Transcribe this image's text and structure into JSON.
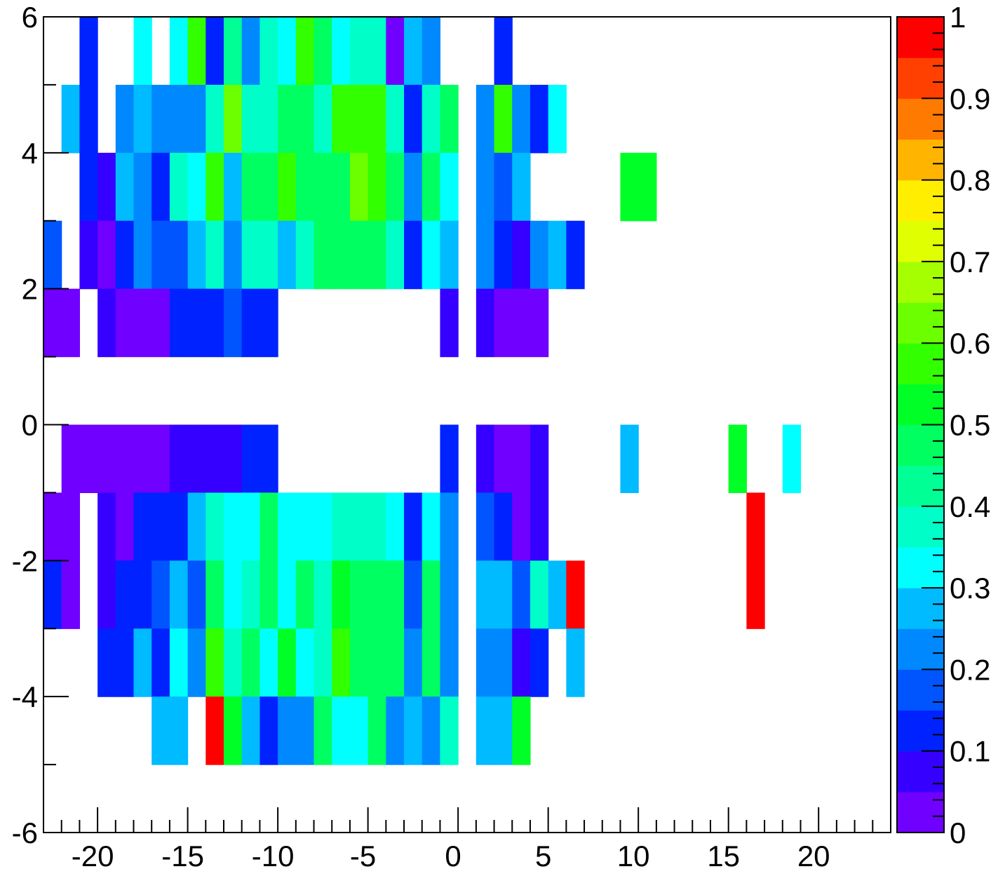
{
  "chart_data": {
    "type": "heatmap",
    "title": "",
    "xlabel": "",
    "ylabel": "",
    "xlim": [
      -23,
      24
    ],
    "ylim": [
      -6,
      6
    ],
    "x_bin_width": 1,
    "y_bin_width": 1,
    "x_tick_labels": [
      "-20",
      "-15",
      "-10",
      "-5",
      "0",
      "5",
      "10",
      "15",
      "20"
    ],
    "y_tick_labels": [
      "6",
      "4",
      "2",
      "0",
      "-2",
      "-4",
      "-6"
    ],
    "color_scale": {
      "min": 0,
      "max": 1,
      "tick_labels": [
        "1",
        "0.9",
        "0.8",
        "0.7",
        "0.6",
        "0.5",
        "0.4",
        "0.3",
        "0.2",
        "0.1",
        "0"
      ],
      "colors": [
        "#7000ff",
        "#3500ff",
        "#0022ff",
        "#0055ff",
        "#0088ff",
        "#00bbff",
        "#00ffff",
        "#00ffc8",
        "#00ff94",
        "#00ff60",
        "#00ff26",
        "#32ff00",
        "#6cff00",
        "#a6ff00",
        "#e0ff00",
        "#ffee00",
        "#ffb400",
        "#ff7a00",
        "#ff4000",
        "#ff0000"
      ]
    },
    "rows": [
      {
        "y_low": 5,
        "cells": [
          [
            -21,
            0.14
          ],
          [
            -18,
            0.31
          ],
          [
            -16,
            0.31
          ],
          [
            -15,
            0.55
          ],
          [
            -14,
            0.14
          ],
          [
            -13,
            0.42
          ],
          [
            -12,
            0.22
          ],
          [
            -11,
            0.38
          ],
          [
            -10,
            0.31
          ],
          [
            -9,
            0.55
          ],
          [
            -8,
            0.45
          ],
          [
            -7,
            0.31
          ],
          [
            -6,
            0.38
          ],
          [
            -5,
            0.38
          ],
          [
            -4,
            0.02
          ],
          [
            -3,
            0.25
          ],
          [
            -2,
            0.22
          ],
          [
            2,
            0.14
          ]
        ]
      },
      {
        "y_low": 4,
        "cells": [
          [
            -22,
            0.28
          ],
          [
            -21,
            0.14
          ],
          [
            -19,
            0.22
          ],
          [
            -18,
            0.28
          ],
          [
            -17,
            0.22
          ],
          [
            -16,
            0.22
          ],
          [
            -15,
            0.22
          ],
          [
            -14,
            0.38
          ],
          [
            -13,
            0.62
          ],
          [
            -12,
            0.38
          ],
          [
            -11,
            0.38
          ],
          [
            -10,
            0.45
          ],
          [
            -9,
            0.48
          ],
          [
            -8,
            0.38
          ],
          [
            -7,
            0.55
          ],
          [
            -6,
            0.55
          ],
          [
            -5,
            0.55
          ],
          [
            -4,
            0.38
          ],
          [
            -3,
            0.14
          ],
          [
            -2,
            0.38
          ],
          [
            -1,
            0.48
          ],
          [
            1,
            0.22
          ],
          [
            2,
            0.55
          ],
          [
            3,
            0.22
          ],
          [
            4,
            0.12
          ],
          [
            5,
            0.31
          ]
        ]
      },
      {
        "y_low": 3,
        "cells": [
          [
            -21,
            0.12
          ],
          [
            -20,
            0.06
          ],
          [
            -19,
            0.28
          ],
          [
            -18,
            0.22
          ],
          [
            -17,
            0.14
          ],
          [
            -16,
            0.38
          ],
          [
            -15,
            0.31
          ],
          [
            -14,
            0.55
          ],
          [
            -13,
            0.28
          ],
          [
            -12,
            0.48
          ],
          [
            -11,
            0.45
          ],
          [
            -10,
            0.55
          ],
          [
            -9,
            0.45
          ],
          [
            -8,
            0.45
          ],
          [
            -7,
            0.45
          ],
          [
            -6,
            0.62
          ],
          [
            -5,
            0.55
          ],
          [
            -4,
            0.48
          ],
          [
            -3,
            0.22
          ],
          [
            -2,
            0.45
          ],
          [
            -1,
            0.31
          ],
          [
            1,
            0.22
          ],
          [
            2,
            0.18
          ],
          [
            3,
            0.28
          ],
          [
            9,
            0.52
          ],
          [
            10,
            0.52
          ]
        ]
      },
      {
        "y_low": 2,
        "cells": [
          [
            -23,
            0.18
          ],
          [
            -21,
            0.06
          ],
          [
            -20,
            0.02
          ],
          [
            -19,
            0.14
          ],
          [
            -18,
            0.22
          ],
          [
            -17,
            0.18
          ],
          [
            -16,
            0.18
          ],
          [
            -15,
            0.28
          ],
          [
            -14,
            0.38
          ],
          [
            -13,
            0.22
          ],
          [
            -12,
            0.38
          ],
          [
            -11,
            0.38
          ],
          [
            -10,
            0.28
          ],
          [
            -9,
            0.38
          ],
          [
            -8,
            0.45
          ],
          [
            -7,
            0.45
          ],
          [
            -6,
            0.45
          ],
          [
            -5,
            0.45
          ],
          [
            -4,
            0.38
          ],
          [
            -3,
            0.14
          ],
          [
            -2,
            0.31
          ],
          [
            -1,
            0.28
          ],
          [
            1,
            0.22
          ],
          [
            2,
            0.14
          ],
          [
            3,
            0.06
          ],
          [
            4,
            0.22
          ],
          [
            5,
            0.28
          ],
          [
            6,
            0.12
          ]
        ]
      },
      {
        "y_low": 1,
        "cells": [
          [
            -23,
            0.02
          ],
          [
            -22,
            0.02
          ],
          [
            -20,
            0.06
          ],
          [
            -19,
            0.02
          ],
          [
            -18,
            0.02
          ],
          [
            -17,
            0.02
          ],
          [
            -16,
            0.12
          ],
          [
            -15,
            0.12
          ],
          [
            -14,
            0.12
          ],
          [
            -13,
            0.18
          ],
          [
            -12,
            0.12
          ],
          [
            -11,
            0.12
          ],
          [
            -1,
            0.06
          ],
          [
            1,
            0.06
          ],
          [
            2,
            0.02
          ],
          [
            3,
            0.02
          ],
          [
            4,
            0.02
          ]
        ]
      },
      {
        "y_low": -1,
        "cells": [
          [
            -22,
            0.02
          ],
          [
            -21,
            0.02
          ],
          [
            -20,
            0.02
          ],
          [
            -19,
            0.02
          ],
          [
            -18,
            0.02
          ],
          [
            -17,
            0.02
          ],
          [
            -16,
            0.06
          ],
          [
            -15,
            0.06
          ],
          [
            -14,
            0.06
          ],
          [
            -13,
            0.06
          ],
          [
            -12,
            0.12
          ],
          [
            -11,
            0.12
          ],
          [
            -1,
            0.12
          ],
          [
            1,
            0.06
          ],
          [
            2,
            0.02
          ],
          [
            3,
            0.02
          ],
          [
            4,
            0.06
          ],
          [
            9,
            0.28
          ],
          [
            15,
            0.52
          ],
          [
            18,
            0.31
          ]
        ]
      },
      {
        "y_low": -2,
        "cells": [
          [
            -23,
            0.02
          ],
          [
            -22,
            0.02
          ],
          [
            -20,
            0.06
          ],
          [
            -19,
            0.02
          ],
          [
            -18,
            0.12
          ],
          [
            -17,
            0.12
          ],
          [
            -16,
            0.12
          ],
          [
            -15,
            0.28
          ],
          [
            -14,
            0.38
          ],
          [
            -13,
            0.31
          ],
          [
            -12,
            0.31
          ],
          [
            -11,
            0.45
          ],
          [
            -10,
            0.31
          ],
          [
            -9,
            0.31
          ],
          [
            -8,
            0.31
          ],
          [
            -7,
            0.38
          ],
          [
            -6,
            0.38
          ],
          [
            -5,
            0.38
          ],
          [
            -4,
            0.31
          ],
          [
            -3,
            0.12
          ],
          [
            -2,
            0.31
          ],
          [
            -1,
            0.22
          ],
          [
            1,
            0.18
          ],
          [
            2,
            0.12
          ],
          [
            3,
            0.02
          ],
          [
            4,
            0.06
          ],
          [
            16,
            1.0
          ]
        ]
      },
      {
        "y_low": -3,
        "cells": [
          [
            -23,
            0.12
          ],
          [
            -22,
            0.02
          ],
          [
            -20,
            0.06
          ],
          [
            -19,
            0.12
          ],
          [
            -18,
            0.12
          ],
          [
            -17,
            0.18
          ],
          [
            -16,
            0.28
          ],
          [
            -15,
            0.18
          ],
          [
            -14,
            0.45
          ],
          [
            -13,
            0.31
          ],
          [
            -12,
            0.38
          ],
          [
            -11,
            0.45
          ],
          [
            -10,
            0.31
          ],
          [
            -9,
            0.48
          ],
          [
            -8,
            0.38
          ],
          [
            -7,
            0.52
          ],
          [
            -6,
            0.48
          ],
          [
            -5,
            0.48
          ],
          [
            -4,
            0.48
          ],
          [
            -3,
            0.18
          ],
          [
            -2,
            0.48
          ],
          [
            -1,
            0.22
          ],
          [
            1,
            0.28
          ],
          [
            2,
            0.28
          ],
          [
            3,
            0.18
          ],
          [
            4,
            0.38
          ],
          [
            5,
            0.28
          ],
          [
            6,
            1.0
          ],
          [
            16,
            1.0
          ]
        ]
      },
      {
        "y_low": -4,
        "cells": [
          [
            -20,
            0.12
          ],
          [
            -19,
            0.12
          ],
          [
            -18,
            0.28
          ],
          [
            -17,
            0.12
          ],
          [
            -16,
            0.31
          ],
          [
            -15,
            0.22
          ],
          [
            -14,
            0.55
          ],
          [
            -13,
            0.38
          ],
          [
            -12,
            0.45
          ],
          [
            -11,
            0.31
          ],
          [
            -10,
            0.52
          ],
          [
            -9,
            0.31
          ],
          [
            -8,
            0.38
          ],
          [
            -7,
            0.55
          ],
          [
            -6,
            0.45
          ],
          [
            -5,
            0.48
          ],
          [
            -4,
            0.48
          ],
          [
            -3,
            0.22
          ],
          [
            -2,
            0.48
          ],
          [
            -1,
            0.22
          ],
          [
            1,
            0.22
          ],
          [
            2,
            0.22
          ],
          [
            3,
            0.06
          ],
          [
            4,
            0.12
          ],
          [
            6,
            0.28
          ]
        ]
      },
      {
        "y_low": -5,
        "cells": [
          [
            -17,
            0.28
          ],
          [
            -16,
            0.28
          ],
          [
            -14,
            1.0
          ],
          [
            -13,
            0.52
          ],
          [
            -12,
            0.28
          ],
          [
            -11,
            0.12
          ],
          [
            -10,
            0.22
          ],
          [
            -9,
            0.22
          ],
          [
            -8,
            0.45
          ],
          [
            -7,
            0.31
          ],
          [
            -6,
            0.31
          ],
          [
            -5,
            0.48
          ],
          [
            -4,
            0.22
          ],
          [
            -3,
            0.28
          ],
          [
            -2,
            0.22
          ],
          [
            -1,
            0.38
          ],
          [
            1,
            0.28
          ],
          [
            2,
            0.28
          ],
          [
            3,
            0.52
          ]
        ]
      }
    ]
  }
}
